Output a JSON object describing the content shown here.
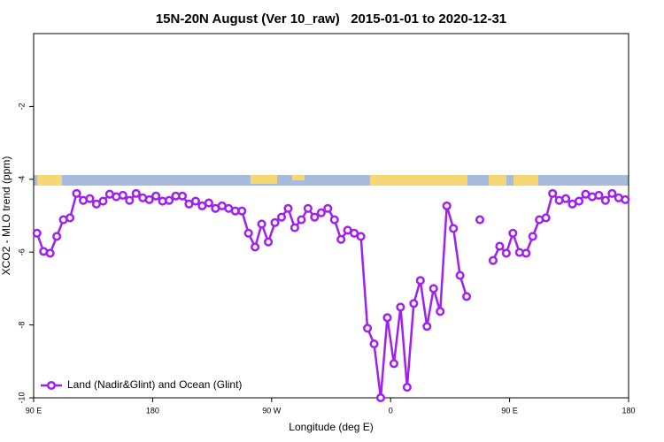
{
  "chart_data": {
    "type": "line",
    "title": "15N-20N August (Ver 10_raw)   2015-01-01 to 2020-12-31",
    "x_label": "Longitude (deg E)",
    "y_label": "XCO2 - MLO trend (ppm)",
    "xlim": [
      90,
      540
    ],
    "xticks": [
      {
        "value": 90,
        "label": "90 E"
      },
      180,
      {
        "value": 270,
        "label": "90 W"
      },
      {
        "value": 360,
        "label": "0"
      },
      {
        "value": 450,
        "label": "90 E"
      },
      {
        "value": 540,
        "label": "180"
      }
    ],
    "ylim": [
      -10,
      0
    ],
    "yticks": [
      -10,
      -8,
      -6,
      -4,
      -2
    ],
    "legend": "bottom-left",
    "x": [
      92.5,
      97.5,
      102.5,
      107.5,
      112.5,
      117.5,
      122.5,
      127.5,
      132.5,
      137.5,
      142.5,
      147.5,
      152.5,
      157.5,
      162.5,
      167.5,
      172.5,
      177.5,
      182.5,
      187.5,
      192.5,
      197.5,
      202.5,
      207.5,
      212.5,
      217.5,
      222.5,
      227.5,
      232.5,
      237.5,
      242.5,
      247.5,
      252.5,
      257.5,
      262.5,
      267.5,
      272.5,
      277.5,
      282.5,
      287.5,
      292.5,
      297.5,
      302.5,
      307.5,
      312.5,
      317.5,
      322.5,
      327.5,
      332.5,
      337.5,
      342.5,
      347.5,
      352.5,
      357.5,
      362.5,
      367.5,
      372.5,
      377.5,
      382.5,
      387.5,
      392.5,
      397.5,
      402.5,
      407.5,
      412.5,
      417.5,
      422.5,
      427.5,
      432.5,
      437.5,
      442.5,
      447.5,
      452.5,
      457.5,
      462.5,
      467.5,
      472.5,
      477.5,
      482.5,
      487.5,
      492.5,
      497.5,
      502.5,
      507.5,
      512.5,
      517.5,
      522.5,
      527.5,
      532.5,
      537.5
    ],
    "series": [
      {
        "name": "Land (Nadir&Glint) and Ocean (Glint)",
        "color": "#a020f0",
        "values": [
          -5.48,
          -5.98,
          -6.03,
          -5.57,
          -5.11,
          -5.06,
          -4.39,
          -4.58,
          -4.53,
          -4.68,
          -4.6,
          -4.41,
          -4.48,
          -4.44,
          -4.58,
          -4.39,
          -4.51,
          -4.56,
          -4.46,
          -4.6,
          -4.58,
          -4.46,
          -4.46,
          -4.68,
          -4.6,
          -4.73,
          -4.65,
          -4.8,
          -4.73,
          -4.8,
          -4.87,
          -4.87,
          -5.48,
          -5.86,
          -5.23,
          -5.72,
          -5.19,
          -5.04,
          -4.8,
          -5.33,
          -5.11,
          -4.8,
          -5.04,
          -4.92,
          -4.8,
          -5.11,
          -5.65,
          -5.4,
          -5.48,
          -5.57,
          -8.09,
          -8.52,
          -10.0,
          -7.8,
          -9.06,
          -7.51,
          -9.71,
          -7.41,
          -6.78,
          -8.04,
          -7.0,
          -7.63,
          -4.73,
          -5.35,
          -6.64,
          -7.22,
          null,
          -5.11,
          null,
          -6.23,
          -5.84,
          -6.03,
          -5.48,
          -6.01,
          -6.03,
          -5.57,
          -5.11,
          -5.06,
          -4.39,
          -4.58,
          -4.53,
          -4.68,
          -4.6,
          -4.41,
          -4.48,
          -4.44,
          -4.58,
          -4.39,
          -4.51,
          -4.56
        ]
      }
    ]
  }
}
